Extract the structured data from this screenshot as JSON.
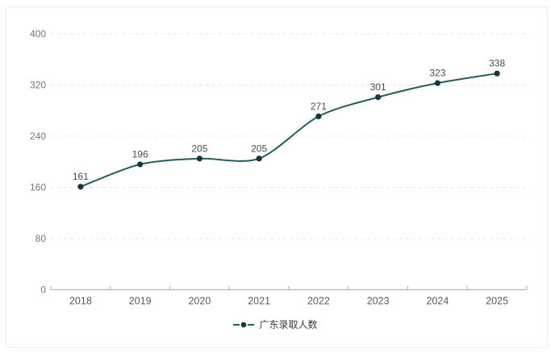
{
  "chart_data": {
    "type": "line",
    "title": "",
    "xlabel": "",
    "ylabel": "",
    "categories": [
      "2018",
      "2019",
      "2020",
      "2021",
      "2022",
      "2023",
      "2024",
      "2025"
    ],
    "series": [
      {
        "name": "广东录取人数",
        "values": [
          161,
          196,
          205,
          205,
          271,
          301,
          323,
          338
        ]
      }
    ],
    "data_labels": [
      "161",
      "196",
      "205",
      "205",
      "271",
      "301",
      "323",
      "338"
    ],
    "yticks": [
      0,
      80,
      160,
      240,
      320,
      400
    ],
    "ytick_labels": [
      "0",
      "80",
      "160",
      "240",
      "320",
      "400"
    ],
    "ylim": [
      0,
      400
    ],
    "grid": "horizontal-dashed",
    "smooth": true,
    "legend": {
      "label": "广东录取人数",
      "position": "bottom-center"
    },
    "colors": {
      "line": "#265c5c",
      "marker": "#16383c",
      "grid": "#e4e4e4",
      "axis": "#aaaaaa",
      "y_tick_label": "#75757d",
      "x_tick_label": "#595959",
      "data_label": "#4c4c4c",
      "legend_text": "#3a3a3a",
      "card_border": "#e7eff0",
      "background": "#ffffff"
    }
  }
}
